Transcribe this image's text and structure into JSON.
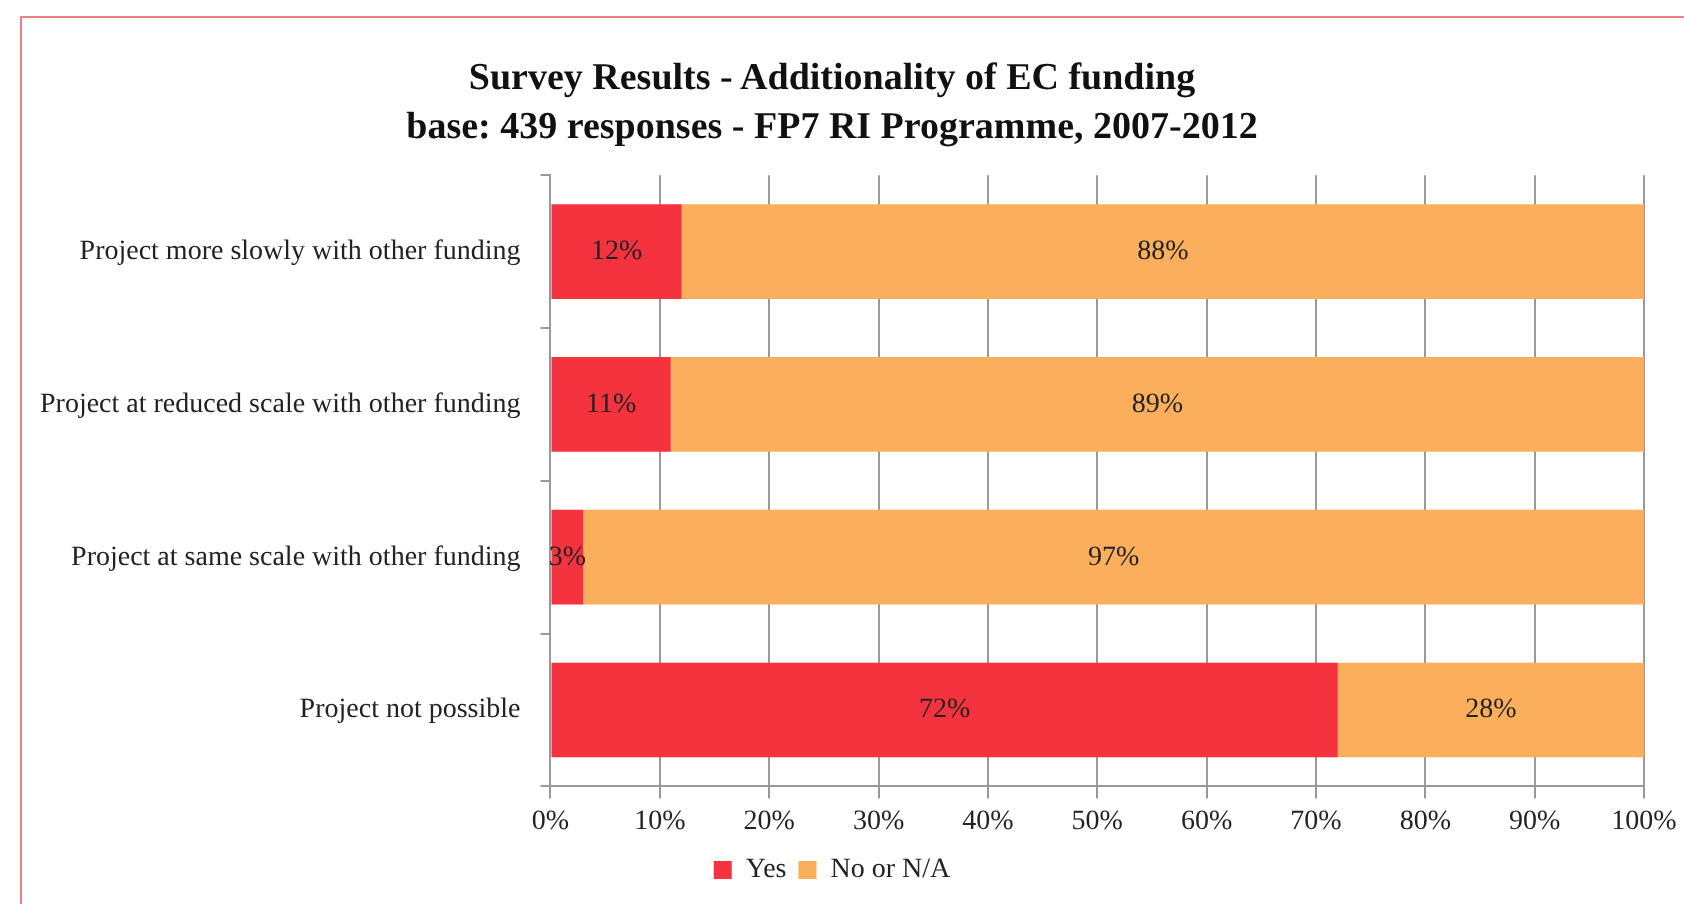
{
  "chart_data": {
    "type": "bar",
    "orientation": "horizontal",
    "stacked": true,
    "title": "Survey Results - Additionality of EC funding",
    "subtitle": "base: 439 responses - FP7 RI Programme, 2007-2012",
    "categories": [
      "Project more slowly with other funding",
      "Project at reduced scale with other funding",
      "Project at same scale with other funding",
      "Project not possible"
    ],
    "series": [
      {
        "name": "Yes",
        "color": "#f5333f",
        "values": [
          12,
          11,
          3,
          72
        ],
        "value_labels": [
          "12%",
          "11%",
          "3%",
          "72%"
        ]
      },
      {
        "name": "No or N/A",
        "color": "#fbae5c",
        "values": [
          88,
          89,
          97,
          28
        ],
        "value_labels": [
          "88%",
          "89%",
          "97%",
          "28%"
        ]
      }
    ],
    "xlim": [
      0,
      100
    ],
    "xticks": [
      {
        "value": 0,
        "label": "0%"
      },
      {
        "value": 10,
        "label": "10%"
      },
      {
        "value": 20,
        "label": "20%"
      },
      {
        "value": 30,
        "label": "30%"
      },
      {
        "value": 40,
        "label": "40%"
      },
      {
        "value": 50,
        "label": "50%"
      },
      {
        "value": 60,
        "label": "60%"
      },
      {
        "value": 70,
        "label": "70%"
      },
      {
        "value": 80,
        "label": "80%"
      },
      {
        "value": 90,
        "label": "90%"
      },
      {
        "value": 100,
        "label": "100%"
      }
    ],
    "grid": "x",
    "legend": "bottom"
  }
}
